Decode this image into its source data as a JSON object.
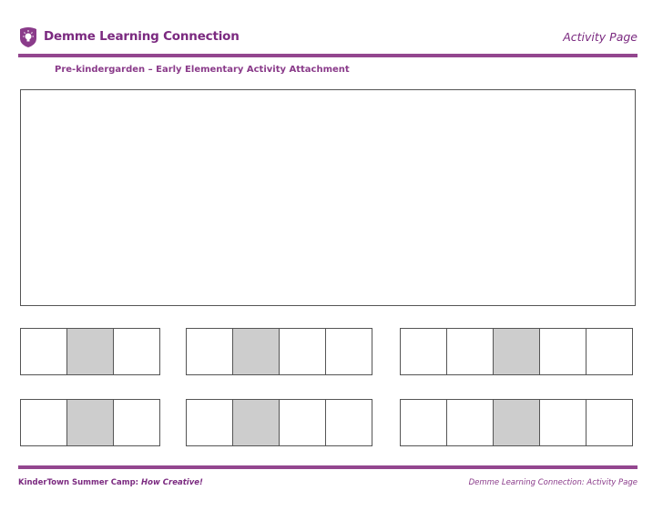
{
  "header": {
    "brand": "Demme Learning Connection",
    "page_label": "Activity Page",
    "logo_icon": "lightbulb-shield-icon"
  },
  "subtitle": "Pre-kindergarden – Early Elementary Activity Attachment",
  "footer": {
    "left_main": "KinderTown Summer Camp: ",
    "left_emph": "How Creative!",
    "right": "Demme Learning Connection: Activity Page"
  },
  "colors": {
    "accent": "#7b2a80",
    "shaded_cell": "#cdcdcd"
  },
  "pattern_rows": [
    [
      {
        "cells": 3,
        "shaded": [
          1
        ]
      },
      {
        "cells": 4,
        "shaded": [
          1
        ]
      },
      {
        "cells": 5,
        "shaded": [
          2
        ]
      }
    ],
    [
      {
        "cells": 3,
        "shaded": [
          1
        ]
      },
      {
        "cells": 4,
        "shaded": [
          1
        ]
      },
      {
        "cells": 5,
        "shaded": [
          2
        ]
      }
    ]
  ]
}
